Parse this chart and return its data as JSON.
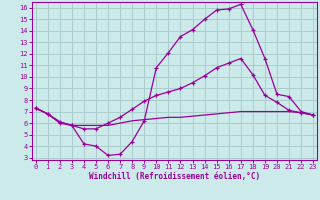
{
  "xlabel": "Windchill (Refroidissement éolien,°C)",
  "background_color": "#cceaea",
  "grid_color": "#aacccc",
  "line_color": "#990099",
  "x_ticks": [
    0,
    1,
    2,
    3,
    4,
    5,
    6,
    7,
    8,
    9,
    10,
    11,
    12,
    13,
    14,
    15,
    16,
    17,
    18,
    19,
    20,
    21,
    22,
    23
  ],
  "y_ticks": [
    3,
    4,
    5,
    6,
    7,
    8,
    9,
    10,
    11,
    12,
    13,
    14,
    15,
    16
  ],
  "xlim": [
    -0.3,
    23.3
  ],
  "ylim": [
    2.8,
    16.5
  ],
  "curve1_x": [
    0,
    1,
    2,
    3,
    4,
    5,
    6,
    7,
    8,
    9,
    10,
    11,
    12,
    13,
    14,
    15,
    16,
    17,
    18,
    19,
    20,
    21,
    22,
    23
  ],
  "curve1_y": [
    7.3,
    6.8,
    6.0,
    5.8,
    4.2,
    4.0,
    3.2,
    3.3,
    4.4,
    6.2,
    10.8,
    12.1,
    13.5,
    14.1,
    15.0,
    15.8,
    15.9,
    16.3,
    14.1,
    11.6,
    8.5,
    8.3,
    7.0,
    6.7
  ],
  "curve2_x": [
    0,
    1,
    2,
    3,
    4,
    5,
    6,
    7,
    8,
    9,
    10,
    11,
    12,
    13,
    14,
    15,
    16,
    17,
    18,
    19,
    20,
    21,
    22,
    23
  ],
  "curve2_y": [
    7.3,
    6.8,
    6.1,
    5.8,
    5.5,
    5.5,
    6.0,
    6.5,
    7.2,
    7.9,
    8.4,
    8.7,
    9.0,
    9.5,
    10.1,
    10.8,
    11.2,
    11.6,
    10.2,
    8.4,
    7.8,
    7.1,
    6.9,
    6.7
  ],
  "curve3_x": [
    0,
    1,
    2,
    3,
    4,
    5,
    6,
    7,
    8,
    9,
    10,
    11,
    12,
    13,
    14,
    15,
    16,
    17,
    18,
    19,
    20,
    21,
    22,
    23
  ],
  "curve3_y": [
    7.3,
    6.8,
    6.1,
    5.8,
    5.8,
    5.8,
    5.8,
    6.0,
    6.2,
    6.3,
    6.4,
    6.5,
    6.5,
    6.6,
    6.7,
    6.8,
    6.9,
    7.0,
    7.0,
    7.0,
    7.0,
    7.0,
    6.9,
    6.7
  ]
}
